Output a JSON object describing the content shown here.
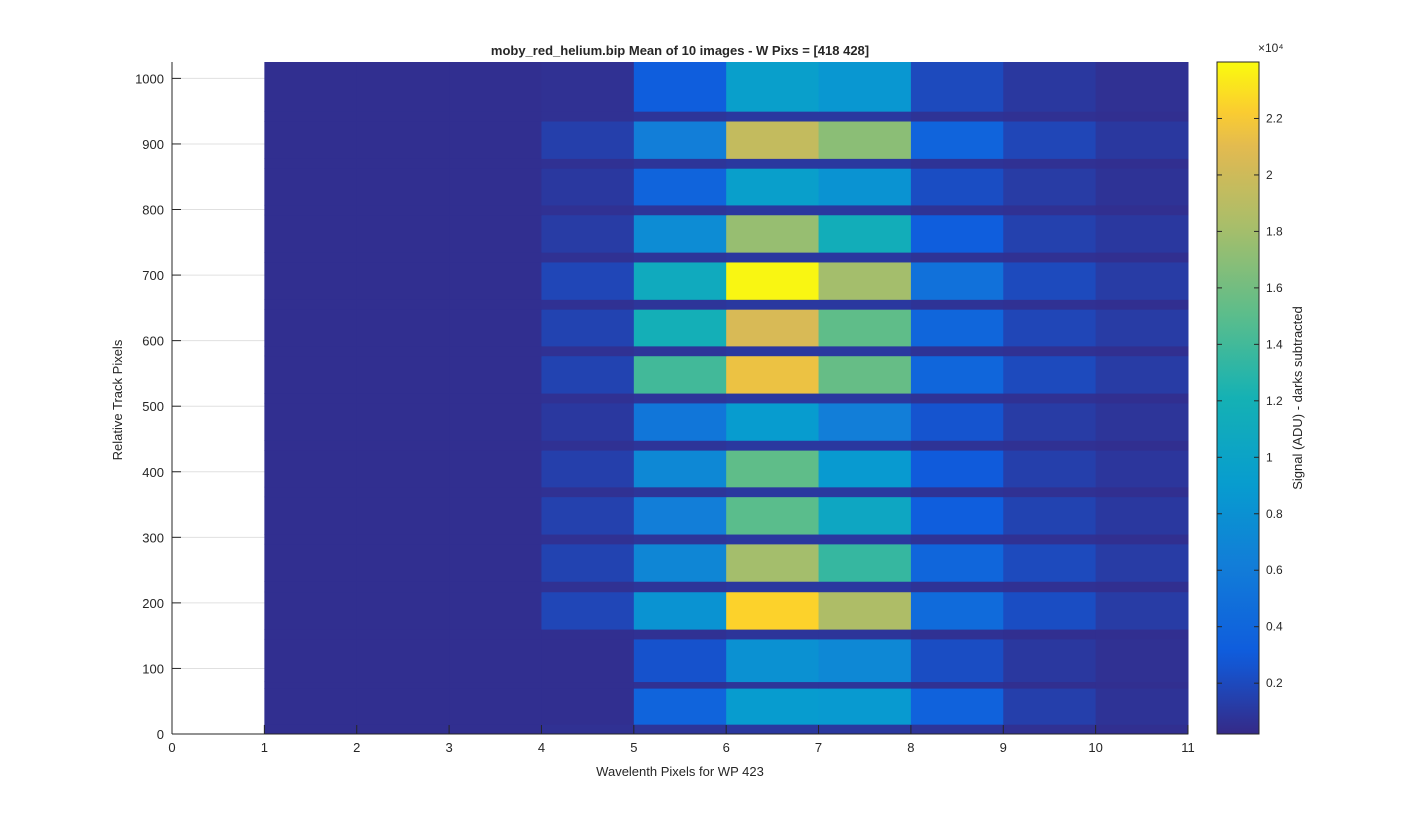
{
  "chart_data": {
    "type": "heatmap",
    "title": "moby_red_helium.bip  Mean of 10 images - W Pixs = [418  428]",
    "xlabel": "Wavelenth Pixels for WP 423",
    "ylabel": "Relative Track Pixels",
    "xlim": [
      0,
      11
    ],
    "ylim": [
      0,
      1025
    ],
    "x_ticks": [
      "0",
      "1",
      "2",
      "3",
      "4",
      "5",
      "6",
      "7",
      "8",
      "9",
      "10",
      "11"
    ],
    "y_ticks": [
      "0",
      "100",
      "200",
      "300",
      "400",
      "500",
      "600",
      "700",
      "800",
      "900",
      "1000"
    ],
    "grid": "horizontal",
    "colormap": "parula",
    "colorbar": {
      "label": "Signal (ADU) - darks subtracted",
      "exponent_label": "×10⁴",
      "min": 0.02,
      "max": 2.4,
      "ticks": [
        "0.2",
        "0.4",
        "0.6",
        "0.8",
        "1",
        "1.2",
        "1.4",
        "1.6",
        "1.8",
        "2",
        "2.2"
      ]
    },
    "column_bins": [
      [
        1,
        2
      ],
      [
        2,
        3
      ],
      [
        3,
        4
      ],
      [
        4,
        5
      ],
      [
        5,
        6
      ],
      [
        6,
        7
      ],
      [
        7,
        8
      ],
      [
        8,
        9
      ],
      [
        9,
        10
      ],
      [
        10,
        11
      ]
    ],
    "rows": [
      {
        "y": [
          0,
          15
        ],
        "values": [
          0.05,
          0.05,
          0.05,
          0.06,
          0.08,
          0.1,
          0.1,
          0.08,
          0.06,
          0.05
        ]
      },
      {
        "y": [
          15,
          70
        ],
        "values": [
          0.05,
          0.05,
          0.05,
          0.05,
          0.38,
          0.9,
          0.88,
          0.36,
          0.14,
          0.07
        ]
      },
      {
        "y": [
          70,
          80
        ],
        "values": [
          0.05,
          0.05,
          0.05,
          0.05,
          0.06,
          0.08,
          0.08,
          0.06,
          0.05,
          0.05
        ]
      },
      {
        "y": [
          80,
          145
        ],
        "values": [
          0.05,
          0.05,
          0.05,
          0.05,
          0.25,
          0.8,
          0.72,
          0.22,
          0.1,
          0.06
        ]
      },
      {
        "y": [
          145,
          160
        ],
        "values": [
          0.05,
          0.05,
          0.05,
          0.05,
          0.06,
          0.08,
          0.08,
          0.06,
          0.05,
          0.05
        ]
      },
      {
        "y": [
          160,
          217
        ],
        "values": [
          0.05,
          0.05,
          0.05,
          0.18,
          0.82,
          2.25,
          1.85,
          0.45,
          0.22,
          0.12
        ]
      },
      {
        "y": [
          217,
          233
        ],
        "values": [
          0.05,
          0.05,
          0.05,
          0.06,
          0.08,
          0.1,
          0.1,
          0.07,
          0.06,
          0.05
        ]
      },
      {
        "y": [
          233,
          290
        ],
        "values": [
          0.05,
          0.05,
          0.05,
          0.16,
          0.7,
          1.8,
          1.35,
          0.4,
          0.2,
          0.12
        ]
      },
      {
        "y": [
          290,
          305
        ],
        "values": [
          0.05,
          0.05,
          0.05,
          0.06,
          0.08,
          0.1,
          0.1,
          0.07,
          0.06,
          0.05
        ]
      },
      {
        "y": [
          305,
          362
        ],
        "values": [
          0.05,
          0.05,
          0.05,
          0.15,
          0.62,
          1.5,
          1.05,
          0.32,
          0.16,
          0.1
        ]
      },
      {
        "y": [
          362,
          377
        ],
        "values": [
          0.05,
          0.05,
          0.05,
          0.06,
          0.08,
          0.1,
          0.1,
          0.07,
          0.06,
          0.05
        ]
      },
      {
        "y": [
          377,
          433
        ],
        "values": [
          0.05,
          0.05,
          0.05,
          0.14,
          0.72,
          1.52,
          0.88,
          0.3,
          0.14,
          0.09
        ]
      },
      {
        "y": [
          433,
          448
        ],
        "values": [
          0.05,
          0.05,
          0.05,
          0.06,
          0.08,
          0.1,
          0.1,
          0.07,
          0.06,
          0.05
        ]
      },
      {
        "y": [
          448,
          505
        ],
        "values": [
          0.05,
          0.05,
          0.05,
          0.1,
          0.55,
          0.9,
          0.62,
          0.26,
          0.12,
          0.08
        ]
      },
      {
        "y": [
          505,
          520
        ],
        "values": [
          0.05,
          0.05,
          0.05,
          0.06,
          0.08,
          0.1,
          0.1,
          0.07,
          0.06,
          0.05
        ]
      },
      {
        "y": [
          520,
          577
        ],
        "values": [
          0.05,
          0.05,
          0.05,
          0.16,
          1.4,
          2.15,
          1.55,
          0.4,
          0.2,
          0.12
        ]
      },
      {
        "y": [
          577,
          592
        ],
        "values": [
          0.05,
          0.05,
          0.05,
          0.06,
          0.08,
          0.1,
          0.1,
          0.07,
          0.06,
          0.05
        ]
      },
      {
        "y": [
          592,
          648
        ],
        "values": [
          0.05,
          0.05,
          0.05,
          0.16,
          1.18,
          2.05,
          1.52,
          0.4,
          0.18,
          0.12
        ]
      },
      {
        "y": [
          648,
          663
        ],
        "values": [
          0.05,
          0.05,
          0.05,
          0.06,
          0.08,
          0.1,
          0.1,
          0.07,
          0.06,
          0.05
        ]
      },
      {
        "y": [
          663,
          720
        ],
        "values": [
          0.05,
          0.05,
          0.05,
          0.18,
          1.1,
          2.38,
          1.8,
          0.5,
          0.2,
          0.12
        ]
      },
      {
        "y": [
          720,
          735
        ],
        "values": [
          0.05,
          0.05,
          0.05,
          0.06,
          0.08,
          0.1,
          0.1,
          0.07,
          0.06,
          0.05
        ]
      },
      {
        "y": [
          735,
          792
        ],
        "values": [
          0.05,
          0.05,
          0.05,
          0.12,
          0.75,
          1.75,
          1.15,
          0.32,
          0.15,
          0.1
        ]
      },
      {
        "y": [
          792,
          807
        ],
        "values": [
          0.05,
          0.05,
          0.05,
          0.06,
          0.08,
          0.1,
          0.1,
          0.07,
          0.06,
          0.05
        ]
      },
      {
        "y": [
          807,
          863
        ],
        "values": [
          0.05,
          0.05,
          0.05,
          0.1,
          0.38,
          0.95,
          0.82,
          0.22,
          0.12,
          0.07
        ]
      },
      {
        "y": [
          863,
          878
        ],
        "values": [
          0.05,
          0.05,
          0.05,
          0.06,
          0.08,
          0.1,
          0.1,
          0.07,
          0.06,
          0.05
        ]
      },
      {
        "y": [
          878,
          935
        ],
        "values": [
          0.05,
          0.05,
          0.05,
          0.14,
          0.62,
          1.95,
          1.7,
          0.38,
          0.18,
          0.1
        ]
      },
      {
        "y": [
          935,
          950
        ],
        "values": [
          0.05,
          0.05,
          0.05,
          0.06,
          0.08,
          0.1,
          0.1,
          0.07,
          0.06,
          0.05
        ]
      },
      {
        "y": [
          950,
          1025
        ],
        "values": [
          0.05,
          0.05,
          0.05,
          0.06,
          0.32,
          0.95,
          0.85,
          0.2,
          0.1,
          0.06
        ]
      }
    ]
  }
}
